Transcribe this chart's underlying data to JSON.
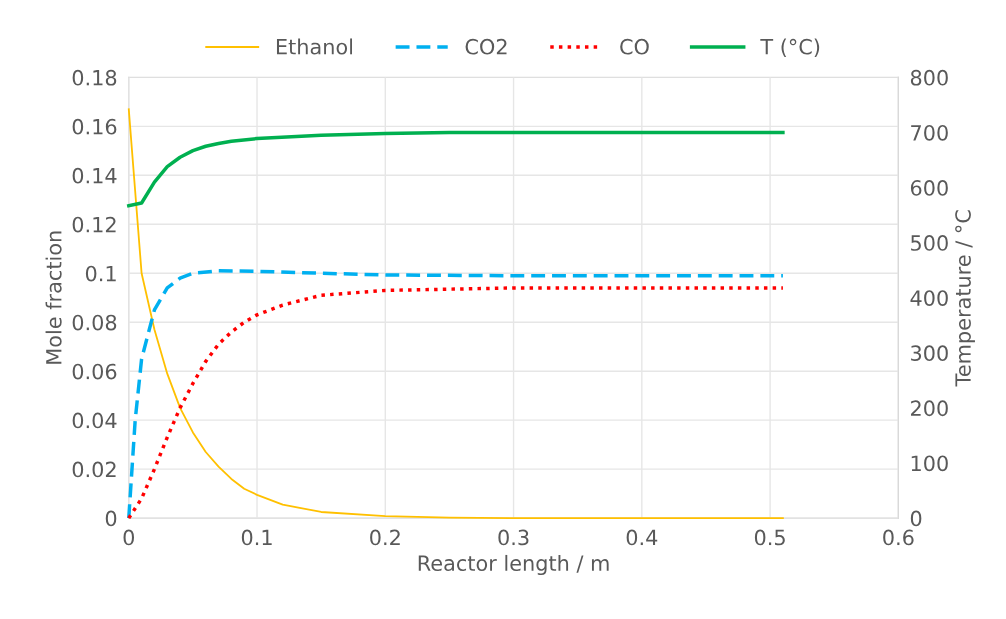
{
  "chart_data": {
    "type": "line",
    "xlabel": "Reactor length / m",
    "ylabel": "Mole fraction",
    "y2label": "Temperature / °C",
    "xlim": [
      0,
      0.6
    ],
    "xticks": [
      0,
      0.1,
      0.2,
      0.3,
      0.4,
      0.5,
      0.6
    ],
    "ylim": [
      0,
      0.18
    ],
    "yticks": [
      0,
      0.02,
      0.04,
      0.06,
      0.08,
      0.1,
      0.12,
      0.14,
      0.16,
      0.18
    ],
    "y2lim": [
      0,
      800
    ],
    "y2ticks": [
      0,
      100,
      200,
      300,
      400,
      500,
      600,
      700,
      800
    ],
    "grid": true,
    "legend": "top",
    "marker": "none",
    "series": [
      {
        "name": "Ethanol",
        "color": "#ffc000",
        "line_style": "solid",
        "x": [
          0,
          0.01,
          0.02,
          0.03,
          0.04,
          0.05,
          0.06,
          0.07,
          0.08,
          0.09,
          0.1,
          0.12,
          0.15,
          0.2,
          0.25,
          0.3,
          0.51
        ],
        "values": [
          0.167,
          0.1,
          0.077,
          0.059,
          0.045,
          0.035,
          0.027,
          0.021,
          0.016,
          0.012,
          0.0095,
          0.0055,
          0.0025,
          0.0008,
          0.0002,
          0,
          0
        ]
      },
      {
        "name": "CO2",
        "color": "#00b0f0",
        "line_style": "dashed",
        "x": [
          0,
          0.005,
          0.01,
          0.02,
          0.03,
          0.04,
          0.05,
          0.07,
          0.1,
          0.15,
          0.2,
          0.3,
          0.4,
          0.51
        ],
        "values": [
          0,
          0.04,
          0.065,
          0.085,
          0.094,
          0.098,
          0.1,
          0.101,
          0.1008,
          0.1,
          0.0993,
          0.099,
          0.099,
          0.099
        ]
      },
      {
        "name": "CO",
        "color": "#ff0000",
        "line_style": "dotted",
        "x": [
          0,
          0.01,
          0.02,
          0.03,
          0.04,
          0.05,
          0.06,
          0.07,
          0.08,
          0.09,
          0.1,
          0.12,
          0.15,
          0.2,
          0.3,
          0.51
        ],
        "values": [
          0,
          0.008,
          0.02,
          0.033,
          0.045,
          0.055,
          0.064,
          0.071,
          0.076,
          0.08,
          0.083,
          0.087,
          0.091,
          0.093,
          0.094,
          0.094
        ]
      },
      {
        "name": "T (°C)",
        "color": "#00b050",
        "line_style": "solid",
        "axis": "y2",
        "x": [
          0,
          0.01,
          0.02,
          0.03,
          0.04,
          0.05,
          0.06,
          0.07,
          0.08,
          0.1,
          0.15,
          0.2,
          0.25,
          0.51
        ],
        "values": [
          567,
          572,
          610,
          638,
          655,
          667,
          675,
          680,
          684,
          689,
          695,
          698,
          700,
          700
        ]
      }
    ]
  }
}
